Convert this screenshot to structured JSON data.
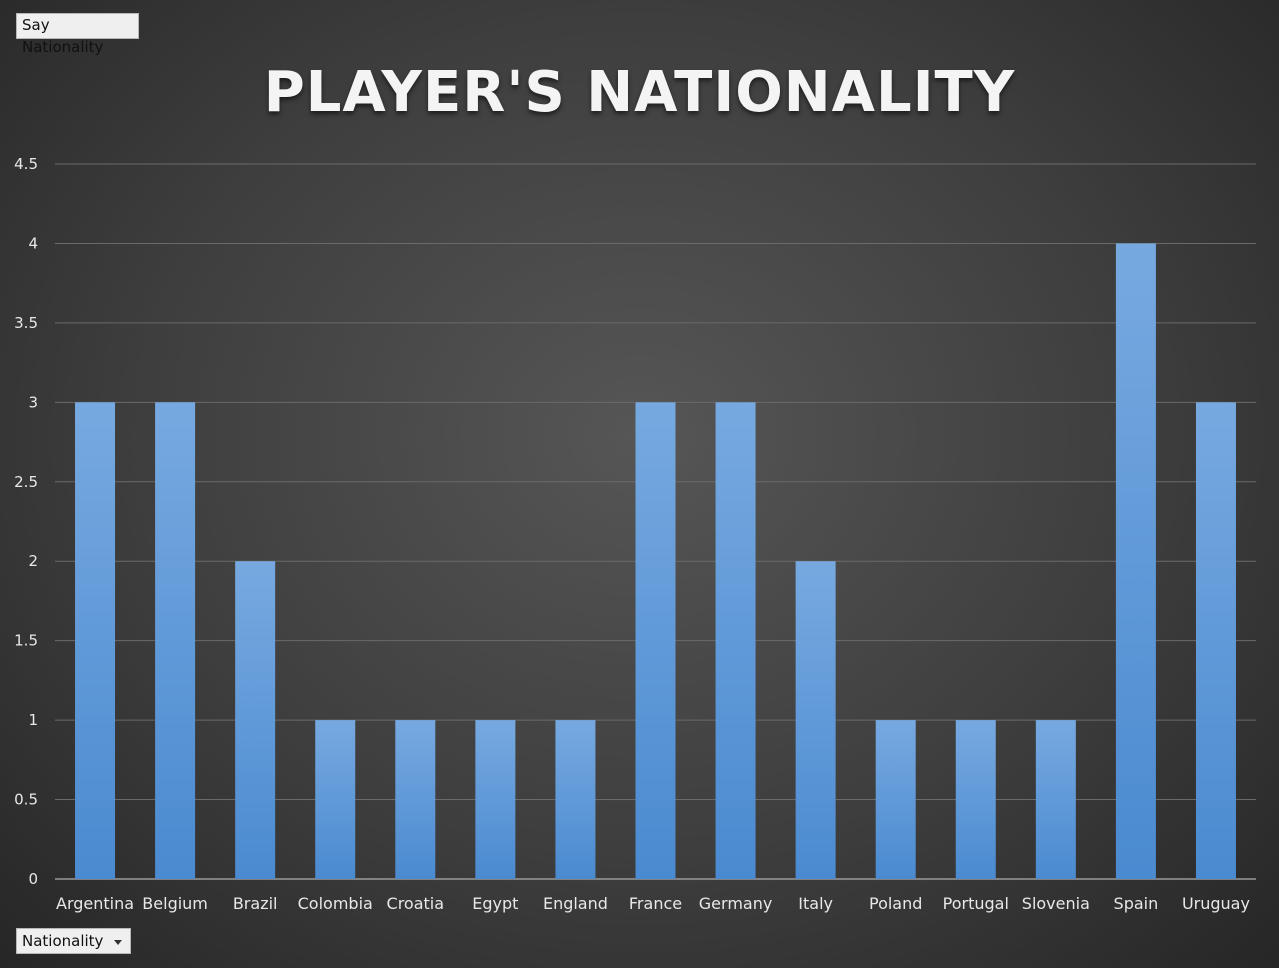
{
  "buttons": {
    "say_label": "Say Nationality",
    "field_label": "Nationality"
  },
  "colors": {
    "bar_top": "#77a9e0",
    "bar_bottom": "#4a8ad0",
    "grid": "#6a6a6a",
    "text": "#e8e8e8"
  },
  "chart_data": {
    "type": "bar",
    "title": "PLAYER'S NATIONALITY",
    "xlabel": "",
    "ylabel": "",
    "categories": [
      "Argentina",
      "Belgium",
      "Brazil",
      "Colombia",
      "Croatia",
      "Egypt",
      "England",
      "France",
      "Germany",
      "Italy",
      "Poland",
      "Portugal",
      "Slovenia",
      "Spain",
      "Uruguay"
    ],
    "values": [
      3,
      3,
      2,
      1,
      1,
      1,
      1,
      3,
      3,
      2,
      1,
      1,
      1,
      4,
      3
    ],
    "ylim": [
      0,
      4.5
    ],
    "yticks": [
      "0",
      "0.5",
      "1",
      "1.5",
      "2",
      "2.5",
      "3",
      "3.5",
      "4",
      "4.5"
    ],
    "grid": true,
    "legend": "none"
  }
}
